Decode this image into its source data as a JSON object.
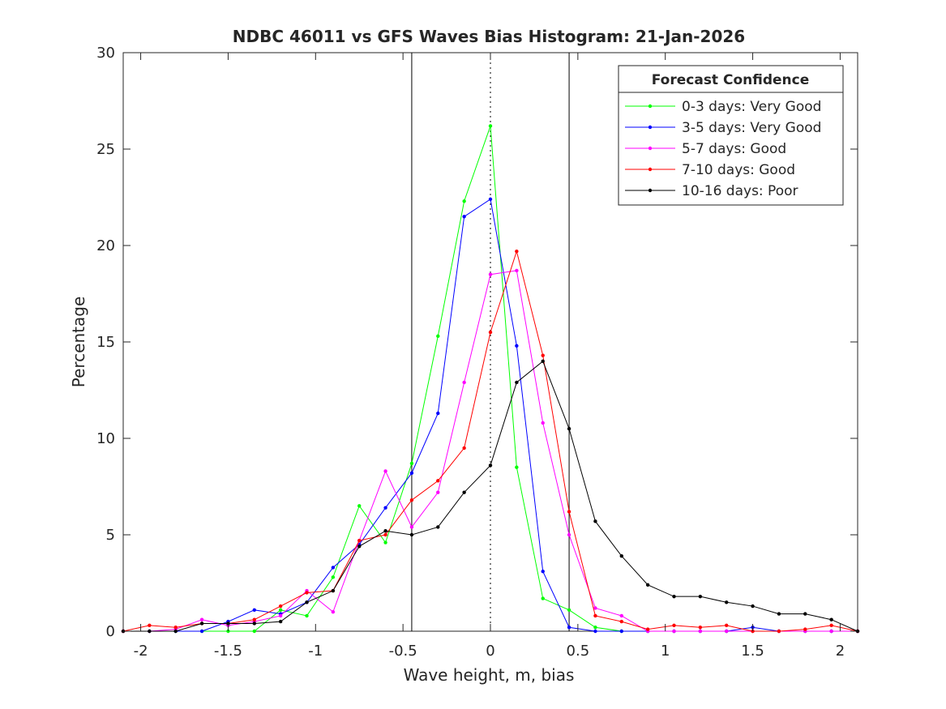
{
  "chart_data": {
    "type": "line",
    "title": "NDBC 46011 vs GFS Waves Bias Histogram: 21-Jan-2026",
    "xlabel": "Wave height, m, bias",
    "ylabel": "Percentage",
    "xlim": [
      -2.1,
      2.1
    ],
    "ylim": [
      0,
      30
    ],
    "xticks": [
      -2,
      -1.5,
      -1,
      -0.5,
      0,
      0.5,
      1,
      1.5,
      2
    ],
    "xtick_labels": [
      "-2",
      "-1.5",
      "-1",
      "-0.5",
      "0",
      "0.5",
      "1",
      "1.5",
      "2"
    ],
    "yticks": [
      0,
      5,
      10,
      15,
      20,
      25,
      30
    ],
    "ytick_labels": [
      "0",
      "5",
      "10",
      "15",
      "20",
      "25",
      "30"
    ],
    "grid": false,
    "legend_title": "Forecast Confidence",
    "legend_position": "top-right",
    "reference_lines": [
      {
        "x": -0.45,
        "style": "solid"
      },
      {
        "x": 0,
        "style": "dotted"
      },
      {
        "x": 0.45,
        "style": "solid"
      }
    ],
    "x": [
      -2.1,
      -1.95,
      -1.8,
      -1.65,
      -1.5,
      -1.35,
      -1.2,
      -1.05,
      -0.9,
      -0.75,
      -0.6,
      -0.45,
      -0.3,
      -0.15,
      0,
      0.15,
      0.3,
      0.45,
      0.6,
      0.75,
      0.9,
      1.05,
      1.2,
      1.35,
      1.5,
      1.65,
      1.8,
      1.95,
      2.1
    ],
    "series": [
      {
        "name": "0-3 days: Very Good",
        "color": "#00ff00",
        "values": [
          0,
          0,
          0,
          0,
          0,
          0,
          1.1,
          0.8,
          2.8,
          6.5,
          4.6,
          8.7,
          15.3,
          22.3,
          26.2,
          8.5,
          1.7,
          1.1,
          0.2,
          0,
          0,
          0,
          0,
          0,
          0,
          0,
          0,
          0,
          0
        ]
      },
      {
        "name": "3-5 days: Very Good",
        "color": "#0000ff",
        "values": [
          0,
          0,
          0,
          0,
          0.5,
          1.1,
          0.9,
          1.5,
          3.3,
          4.5,
          6.4,
          8.2,
          11.3,
          21.5,
          22.4,
          14.8,
          3.1,
          0.2,
          0,
          0,
          0,
          0,
          0,
          0,
          0.2,
          0,
          0,
          0,
          0
        ]
      },
      {
        "name": "5-7 days: Good",
        "color": "#ff00ff",
        "values": [
          0,
          0,
          0.1,
          0.6,
          0.3,
          0.5,
          0.8,
          2.1,
          1.0,
          4.7,
          8.3,
          5.4,
          7.2,
          12.9,
          18.5,
          18.7,
          10.8,
          5.0,
          1.2,
          0.8,
          0,
          0,
          0,
          0,
          0,
          0,
          0,
          0,
          0
        ]
      },
      {
        "name": "7-10 days: Good",
        "color": "#ff0000",
        "values": [
          0,
          0.3,
          0.2,
          0.4,
          0.4,
          0.6,
          1.3,
          2.0,
          2.1,
          4.7,
          5.0,
          6.8,
          7.8,
          9.5,
          15.5,
          19.7,
          14.3,
          6.2,
          0.8,
          0.5,
          0.1,
          0.3,
          0.2,
          0.3,
          0,
          0,
          0.1,
          0.3,
          0
        ]
      },
      {
        "name": "10-16 days: Poor",
        "color": "#000000",
        "values": [
          0,
          0,
          0,
          0.4,
          0.4,
          0.4,
          0.5,
          1.5,
          2.1,
          4.4,
          5.2,
          5.0,
          5.4,
          7.2,
          8.6,
          12.9,
          14.0,
          10.5,
          5.7,
          3.9,
          2.4,
          1.8,
          1.8,
          1.5,
          1.3,
          0.9,
          0.9,
          0.6,
          0
        ]
      }
    ]
  }
}
